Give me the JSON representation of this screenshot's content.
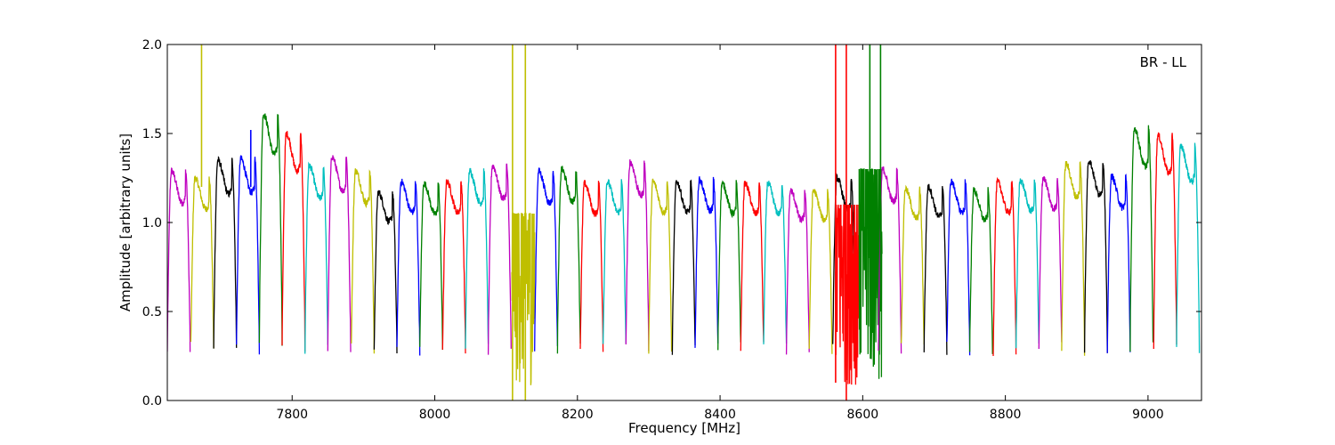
{
  "chart_data": {
    "type": "line",
    "annotation": "BR - LL",
    "xlabel": "Frequency [MHz]",
    "ylabel": "Amplitude [arbitrary units]",
    "xlim": [
      7625,
      9075
    ],
    "ylim": [
      0,
      2.0
    ],
    "x_ticks": [
      7800,
      8000,
      8200,
      8400,
      8600,
      8800,
      9000
    ],
    "x_tick_labels": [
      "7800",
      "8000",
      "8200",
      "8400",
      "8600",
      "8800",
      "9000"
    ],
    "y_ticks": [
      0.0,
      0.5,
      1.0,
      1.5,
      2.0
    ],
    "y_tick_labels": [
      "0.0",
      "0.5",
      "1.0",
      "1.5",
      "2.0"
    ],
    "grid": false,
    "colors": {
      "m": "#bf00bf",
      "y": "#bfbf00",
      "k": "#000000",
      "b": "#0000ff",
      "g": "#008000",
      "r": "#ff0000",
      "c": "#00bfbf"
    },
    "band_width_mhz": 32,
    "bands": [
      {
        "start": 7625,
        "color": "m",
        "peak": 1.29
      },
      {
        "start": 7658,
        "color": "y",
        "peak": 1.25
      },
      {
        "start": 7690,
        "color": "k",
        "peak": 1.35
      },
      {
        "start": 7722,
        "color": "b",
        "peak": 1.36
      },
      {
        "start": 7754,
        "color": "g",
        "peak": 1.61
      },
      {
        "start": 7786,
        "color": "r",
        "peak": 1.5
      },
      {
        "start": 7818,
        "color": "c",
        "peak": 1.32
      },
      {
        "start": 7850,
        "color": "m",
        "peak": 1.37
      },
      {
        "start": 7883,
        "color": "y",
        "peak": 1.29
      },
      {
        "start": 7915,
        "color": "k",
        "peak": 1.17
      },
      {
        "start": 7947,
        "color": "b",
        "peak": 1.23
      },
      {
        "start": 7979,
        "color": "g",
        "peak": 1.22
      },
      {
        "start": 8011,
        "color": "r",
        "peak": 1.23
      },
      {
        "start": 8043,
        "color": "c",
        "peak": 1.29
      },
      {
        "start": 8075,
        "color": "m",
        "peak": 1.32
      },
      {
        "start": 8108,
        "color": "y",
        "peak": 1.0,
        "noisy": true
      },
      {
        "start": 8140,
        "color": "b",
        "peak": 1.29
      },
      {
        "start": 8172,
        "color": "g",
        "peak": 1.3
      },
      {
        "start": 8204,
        "color": "r",
        "peak": 1.22
      },
      {
        "start": 8236,
        "color": "c",
        "peak": 1.23
      },
      {
        "start": 8268,
        "color": "m",
        "peak": 1.34
      },
      {
        "start": 8300,
        "color": "y",
        "peak": 1.23
      },
      {
        "start": 8333,
        "color": "k",
        "peak": 1.23
      },
      {
        "start": 8365,
        "color": "b",
        "peak": 1.24
      },
      {
        "start": 8397,
        "color": "g",
        "peak": 1.22
      },
      {
        "start": 8429,
        "color": "r",
        "peak": 1.22
      },
      {
        "start": 8461,
        "color": "c",
        "peak": 1.22
      },
      {
        "start": 8493,
        "color": "m",
        "peak": 1.18
      },
      {
        "start": 8525,
        "color": "y",
        "peak": 1.18
      },
      {
        "start": 8558,
        "color": "k",
        "peak": 1.25
      },
      {
        "start": 8562,
        "color": "r",
        "peak": 1.05,
        "noisy": true
      },
      {
        "start": 8595,
        "color": "g",
        "peak": 1.25,
        "noisy": true
      },
      {
        "start": 8622,
        "color": "m",
        "peak": 1.3
      },
      {
        "start": 8654,
        "color": "y",
        "peak": 1.19
      },
      {
        "start": 8686,
        "color": "k",
        "peak": 1.2
      },
      {
        "start": 8718,
        "color": "b",
        "peak": 1.23
      },
      {
        "start": 8750,
        "color": "g",
        "peak": 1.18
      },
      {
        "start": 8783,
        "color": "r",
        "peak": 1.23
      },
      {
        "start": 8815,
        "color": "c",
        "peak": 1.24
      },
      {
        "start": 8847,
        "color": "m",
        "peak": 1.25
      },
      {
        "start": 8879,
        "color": "y",
        "peak": 1.33
      },
      {
        "start": 8911,
        "color": "k",
        "peak": 1.35
      },
      {
        "start": 8943,
        "color": "b",
        "peak": 1.26
      },
      {
        "start": 8975,
        "color": "g",
        "peak": 1.53
      },
      {
        "start": 9008,
        "color": "r",
        "peak": 1.49
      },
      {
        "start": 9040,
        "color": "c",
        "peak": 1.43
      }
    ],
    "spikes": [
      {
        "x": 7673,
        "color": "y",
        "y0": 1.2,
        "y1": 2.0
      },
      {
        "x": 7742,
        "color": "b",
        "y0": 1.2,
        "y1": 1.52
      },
      {
        "x": 8109,
        "color": "y",
        "y0": 0.0,
        "y1": 2.0
      },
      {
        "x": 8127,
        "color": "y",
        "y0": 0.0,
        "y1": 2.0
      },
      {
        "x": 8562,
        "color": "r",
        "y0": 0.1,
        "y1": 2.0
      },
      {
        "x": 8577,
        "color": "r",
        "y0": 0.0,
        "y1": 2.0
      },
      {
        "x": 8610,
        "color": "g",
        "y0": 0.8,
        "y1": 2.0
      },
      {
        "x": 8625,
        "color": "g",
        "y0": 0.5,
        "y1": 2.0
      }
    ]
  }
}
